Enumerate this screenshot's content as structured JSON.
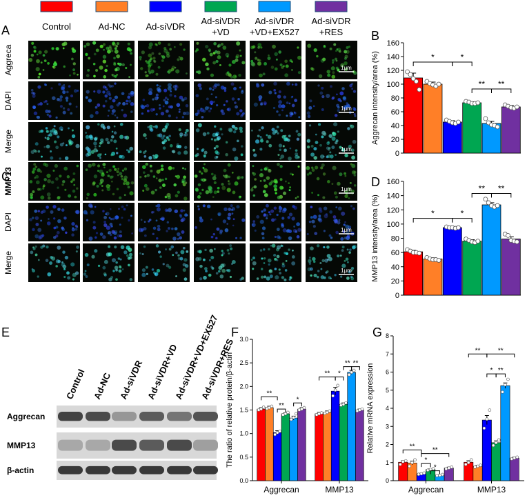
{
  "legend": [
    {
      "label": "Control",
      "color": "#ff0000"
    },
    {
      "label": "Ad-NC",
      "color": "#ff7f27"
    },
    {
      "label": "Ad-siVDR",
      "color": "#0000ff"
    },
    {
      "label": "Ad-siVDR\n+VD",
      "color": "#00a651"
    },
    {
      "label": "Ad-siVDR\n+VD+EX527",
      "color": "#0099ff"
    },
    {
      "label": "Ad-siVDR\n+RES",
      "color": "#7030a0"
    }
  ],
  "panel_letters": [
    "A",
    "B",
    "C",
    "D",
    "E",
    "F",
    "G"
  ],
  "micro": {
    "rows_A": [
      "Aggreca",
      "DAPI",
      "Merge"
    ],
    "rows_C": [
      "MMP13",
      "DAPI",
      "Merge"
    ],
    "scale_bar": "1μm",
    "row_colors_A": [
      "green",
      "blue",
      "cyan"
    ],
    "row_colors_C": [
      "green",
      "blue",
      "cyan"
    ]
  },
  "blot": {
    "lanes": [
      "Control",
      "Ad-NC",
      "Ad-siVDR",
      "Ad-siVDR+VD",
      "Ad-siVDR+VD+EX527",
      "Ad-siVDR+RES"
    ],
    "rows": [
      {
        "label": "Aggrecan",
        "intensity": [
          0.85,
          0.8,
          0.35,
          0.7,
          0.55,
          0.75
        ]
      },
      {
        "label": "MMP13",
        "intensity": [
          0.25,
          0.25,
          0.8,
          0.7,
          0.8,
          0.3
        ]
      },
      {
        "label": "β-actin",
        "intensity": [
          0.9,
          0.9,
          0.9,
          0.9,
          0.9,
          0.9
        ]
      }
    ]
  },
  "chart_data": [
    {
      "panel": "B",
      "type": "bar",
      "title": "",
      "ylabel": "Aggrecan intensity/area (%)",
      "xlabel": "",
      "ylim": [
        0,
        160
      ],
      "yticks": [
        0,
        20,
        40,
        60,
        80,
        100,
        120,
        140,
        160
      ],
      "categories": [
        "Control",
        "Ad-NC",
        "Ad-siVDR",
        "Ad-siVDR+VD",
        "Ad-siVDR+VD+EX527",
        "Ad-siVDR+RES"
      ],
      "values": [
        109,
        100,
        45,
        73,
        43,
        67
      ],
      "errors": [
        7,
        3,
        2,
        1.5,
        3,
        2
      ],
      "points": [
        [
          118,
          114,
          108,
          104,
          92
        ],
        [
          104,
          101,
          99,
          97,
          100
        ],
        [
          48,
          46,
          44,
          43,
          45
        ],
        [
          75,
          74,
          72,
          72,
          73
        ],
        [
          50,
          44,
          41,
          40,
          38
        ],
        [
          70,
          68,
          66,
          65,
          67
        ]
      ],
      "sig": [
        {
          "a": 0,
          "b": 2,
          "text": "*",
          "y": 132
        },
        {
          "a": 2,
          "b": 3,
          "text": "*",
          "y": 132
        },
        {
          "a": 3,
          "b": 4,
          "text": "**",
          "y": 93
        },
        {
          "a": 4,
          "b": 5,
          "text": "**",
          "y": 93
        }
      ]
    },
    {
      "panel": "D",
      "type": "bar",
      "title": "",
      "ylabel": "MMP13 intensity/area (%)",
      "xlabel": "",
      "ylim": [
        0,
        160
      ],
      "yticks": [
        0,
        20,
        40,
        60,
        80,
        100,
        120,
        140,
        160
      ],
      "categories": [
        "Control",
        "Ad-NC",
        "Ad-siVDR",
        "Ad-siVDR+VD",
        "Ad-siVDR+VD+EX527",
        "Ad-siVDR+RES"
      ],
      "values": [
        61,
        51,
        95,
        76,
        127,
        79
      ],
      "errors": [
        2,
        1.5,
        1,
        2,
        3,
        3
      ],
      "points": [
        [
          64,
          62,
          60,
          60,
          59
        ],
        [
          53,
          51,
          50,
          50,
          49
        ],
        [
          96,
          95,
          95,
          94,
          95
        ],
        [
          79,
          77,
          75,
          74,
          76
        ],
        [
          135,
          130,
          126,
          124,
          126
        ],
        [
          86,
          84,
          77,
          76,
          75
        ]
      ],
      "sig": [
        {
          "a": 0,
          "b": 2,
          "text": "*",
          "y": 108
        },
        {
          "a": 2,
          "b": 3,
          "text": "*",
          "y": 108
        },
        {
          "a": 3,
          "b": 4,
          "text": "**",
          "y": 143
        },
        {
          "a": 4,
          "b": 5,
          "text": "**",
          "y": 143
        }
      ]
    },
    {
      "panel": "F",
      "type": "bar",
      "title": "",
      "ylabel": "The ratio of relative protein/β-actin",
      "xlabel": "",
      "ylim": [
        0,
        3.0
      ],
      "yticks": [
        0.0,
        0.5,
        1.0,
        1.5,
        2.0,
        2.5,
        3.0
      ],
      "ytick_labels": [
        "0.0",
        "0.5",
        "1.0",
        "1.5",
        "2.0",
        "2.5",
        "3.0"
      ],
      "groups": [
        "Aggrecan",
        "MMP13"
      ],
      "series": [
        {
          "values": [
            1.52,
            1.42
          ],
          "errors": [
            0.03,
            0.03
          ],
          "points": [
            [
              1.5,
              1.52,
              1.56
            ],
            [
              1.4,
              1.42,
              1.44
            ]
          ]
        },
        {
          "values": [
            1.55,
            1.45
          ],
          "errors": [
            0.03,
            0.03
          ],
          "points": [
            [
              1.53,
              1.55,
              1.58
            ],
            [
              1.43,
              1.45,
              1.48
            ]
          ]
        },
        {
          "values": [
            1.02,
            1.9
          ],
          "errors": [
            0.04,
            0.08
          ],
          "points": [
            [
              0.98,
              1.02,
              1.05
            ],
            [
              1.8,
              1.92,
              2.02
            ]
          ]
        },
        {
          "values": [
            1.42,
            1.62
          ],
          "errors": [
            0.02,
            0.03
          ],
          "points": [
            [
              1.4,
              1.42,
              1.45
            ],
            [
              1.6,
              1.62,
              1.65
            ]
          ]
        },
        {
          "values": [
            1.33,
            2.3
          ],
          "errors": [
            0.04,
            0.04
          ],
          "points": [
            [
              1.3,
              1.34,
              1.42
            ],
            [
              2.25,
              2.3,
              2.34
            ]
          ]
        },
        {
          "values": [
            1.52,
            1.5
          ],
          "errors": [
            0.03,
            0.02
          ],
          "points": [
            [
              1.5,
              1.52,
              1.55
            ],
            [
              1.48,
              1.5,
              1.52
            ]
          ]
        }
      ],
      "sig": [
        {
          "g": 0,
          "a": 0,
          "b": 2,
          "text": "**",
          "y": 1.78
        },
        {
          "g": 0,
          "a": 2,
          "b": 3,
          "text": "**",
          "y": 1.52
        },
        {
          "g": 0,
          "a": 4,
          "b": 5,
          "text": "*",
          "y": 1.65
        },
        {
          "g": 1,
          "a": 0,
          "b": 2,
          "text": "**",
          "y": 2.2
        },
        {
          "g": 1,
          "a": 2,
          "b": 3,
          "text": "*",
          "y": 2.2
        },
        {
          "g": 1,
          "a": 3,
          "b": 4,
          "text": "**",
          "y": 2.42
        },
        {
          "g": 1,
          "a": 4,
          "b": 5,
          "text": "**",
          "y": 2.42
        }
      ]
    },
    {
      "panel": "G",
      "type": "bar",
      "title": "",
      "ylabel": "Relative mRNA expression",
      "xlabel": "",
      "ylim": [
        0,
        8
      ],
      "yticks": [
        0,
        1,
        2,
        3,
        4,
        5,
        6,
        7,
        8
      ],
      "ytick_labels": [
        "0",
        "1",
        "2",
        "3",
        "4",
        "5",
        "6",
        "7",
        "8"
      ],
      "groups": [
        "Aggrecan",
        "MMP13"
      ],
      "series": [
        {
          "values": [
            1.02,
            1.02
          ],
          "errors": [
            0.08,
            0.08
          ],
          "points": [
            [
              0.9,
              1.05,
              1.1
            ],
            [
              0.9,
              1.0,
              1.15
            ]
          ]
        },
        {
          "values": [
            0.98,
            0.8
          ],
          "errors": [
            0.1,
            0.05
          ],
          "points": [
            [
              0.8,
              1.0,
              1.15
            ],
            [
              0.75,
              0.8,
              0.85
            ]
          ]
        },
        {
          "values": [
            0.38,
            3.35
          ],
          "errors": [
            0.03,
            0.25
          ],
          "points": [
            [
              0.35,
              0.38,
              0.42
            ],
            [
              2.9,
              3.4,
              3.9
            ]
          ]
        },
        {
          "values": [
            0.62,
            2.1
          ],
          "errors": [
            0.03,
            0.1
          ],
          "points": [
            [
              0.58,
              0.62,
              0.66
            ],
            [
              1.95,
              2.1,
              2.25
            ]
          ]
        },
        {
          "values": [
            0.3,
            5.25
          ],
          "errors": [
            0.03,
            0.15
          ],
          "points": [
            [
              0.28,
              0.3,
              0.34
            ],
            [
              4.9,
              5.3,
              5.6
            ]
          ]
        },
        {
          "values": [
            0.7,
            1.25
          ],
          "errors": [
            0.05,
            0.05
          ],
          "points": [
            [
              0.65,
              0.7,
              0.75
            ],
            [
              1.2,
              1.25,
              1.3
            ]
          ]
        }
      ],
      "sig": [
        {
          "g": 0,
          "a": 0,
          "b": 2,
          "text": "**",
          "y": 1.7
        },
        {
          "g": 0,
          "a": 2,
          "b": 3,
          "text": "*",
          "y": 0.95
        },
        {
          "g": 0,
          "a": 2,
          "b": 5,
          "text": "**",
          "y": 1.5
        },
        {
          "g": 0,
          "a": 3,
          "b": 4,
          "text": "*",
          "y": 0.55
        },
        {
          "g": 1,
          "a": 0,
          "b": 2,
          "text": "**",
          "y": 7.0
        },
        {
          "g": 1,
          "a": 2,
          "b": 5,
          "text": "**",
          "y": 7.0
        },
        {
          "g": 1,
          "a": 2,
          "b": 3,
          "text": "*",
          "y": 5.9
        },
        {
          "g": 1,
          "a": 3,
          "b": 4,
          "text": "**",
          "y": 5.9
        }
      ]
    }
  ]
}
